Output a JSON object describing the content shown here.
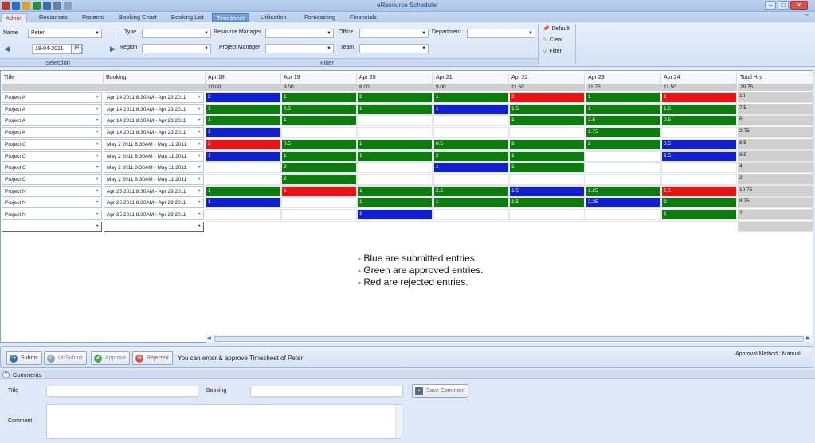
{
  "app": {
    "title": "eResource Scheduler"
  },
  "tabs": [
    {
      "label": "Admin",
      "active": true
    },
    {
      "label": "Resources"
    },
    {
      "label": "Projects"
    },
    {
      "label": "Booking Chart"
    },
    {
      "label": "Booking List"
    },
    {
      "label": "Timesheet",
      "active": true
    },
    {
      "label": "Utilisation"
    },
    {
      "label": "Forecasting"
    },
    {
      "label": "Financials"
    }
  ],
  "selection": {
    "name_label": "Name",
    "name_value": "Peter",
    "date_value": "18-04-2011",
    "calendar_label": "15",
    "group_caption": "Selection"
  },
  "filter": {
    "type_label": "Type",
    "region_label": "Region",
    "resource_manager_label": "Resource Manager",
    "project_manager_label": "Project Manager",
    "office_label": "Office",
    "team_label": "Team",
    "department_label": "Department",
    "group_caption": "Filter"
  },
  "filter_actions": {
    "default": "Default",
    "clear": "Clear",
    "filter": "Filter"
  },
  "grid": {
    "col_title": "Title",
    "col_booking": "Booking",
    "col_total": "Total Hrs",
    "days": [
      {
        "label": "Apr 18",
        "hours": "10.00"
      },
      {
        "label": "Apr 19",
        "hours": "9.00"
      },
      {
        "label": "Apr 20",
        "hours": "8.00"
      },
      {
        "label": "Apr 21",
        "hours": "9.00"
      },
      {
        "label": "Apr 22",
        "hours": "11.50"
      },
      {
        "label": "Apr 23",
        "hours": "11.75"
      },
      {
        "label": "Apr 24",
        "hours": "11.50"
      }
    ],
    "total_hours": "70.75",
    "rows": [
      {
        "title": "Project A",
        "booking": "Apr 14 2011  8:30AM - Apr 23 2011",
        "cells": [
          [
            "2",
            "b"
          ],
          [
            "1",
            "g"
          ],
          [
            "2",
            "g"
          ],
          [
            "1",
            "g"
          ],
          [
            "2",
            "r"
          ],
          [
            "1",
            "g"
          ],
          [
            "1",
            "r"
          ]
        ],
        "total": "10"
      },
      {
        "title": "Project A",
        "booking": "Apr 14 2011  8:30AM - Apr 23 2011",
        "cells": [
          [
            "1",
            "g"
          ],
          [
            "0.5",
            "g"
          ],
          [
            "1",
            "g"
          ],
          [
            "1",
            "b"
          ],
          [
            "1.5",
            "g"
          ],
          [
            "1",
            "g"
          ],
          [
            "1.5",
            "g"
          ]
        ],
        "total": "7.5"
      },
      {
        "title": "Project A",
        "booking": "Apr 14 2011  8:30AM - Apr 23 2011",
        "cells": [
          [
            "1",
            "g"
          ],
          [
            "1",
            "g"
          ],
          [
            "",
            ""
          ],
          [
            "",
            ""
          ],
          [
            "1",
            "g"
          ],
          [
            "2.5",
            "g"
          ],
          [
            "0.5",
            "g"
          ]
        ],
        "total": "6"
      },
      {
        "title": "Project A",
        "booking": "Apr 14 2011  8:30AM - Apr 23 2011",
        "cells": [
          [
            "1",
            "b"
          ],
          [
            "",
            ""
          ],
          [
            "",
            ""
          ],
          [
            "",
            ""
          ],
          [
            "",
            ""
          ],
          [
            "1.75",
            "g"
          ],
          [
            "",
            ""
          ]
        ],
        "total": "2.75"
      },
      {
        "title": "Project C",
        "booking": "May  2 2011  8:30AM - May 11 2011",
        "cells": [
          [
            "2",
            "r"
          ],
          [
            "0.5",
            "g"
          ],
          [
            "1",
            "g"
          ],
          [
            "0.5",
            "g"
          ],
          [
            "2",
            "g"
          ],
          [
            "2",
            "g"
          ],
          [
            "0.5",
            "b"
          ]
        ],
        "total": "8.5"
      },
      {
        "title": "Project C",
        "booking": "May  2 2011  8:30AM - May 11 2011",
        "cells": [
          [
            "1",
            "b"
          ],
          [
            "1",
            "g"
          ],
          [
            "1",
            "g"
          ],
          [
            "2",
            "g"
          ],
          [
            "1",
            "g"
          ],
          [
            "",
            ""
          ],
          [
            "2.5",
            "b"
          ]
        ],
        "total": "8.5"
      },
      {
        "title": "Project C",
        "booking": "May  2 2011  8:30AM - May 11 2011",
        "cells": [
          [
            "",
            ""
          ],
          [
            "2",
            "g"
          ],
          [
            "",
            ""
          ],
          [
            "1",
            "b"
          ],
          [
            "1",
            "g"
          ],
          [
            "",
            ""
          ],
          [
            "",
            ""
          ]
        ],
        "total": "4"
      },
      {
        "title": "Project C",
        "booking": "May  2 2011  8:30AM - May 11 2011",
        "cells": [
          [
            "",
            ""
          ],
          [
            "2",
            "g"
          ],
          [
            "",
            ""
          ],
          [
            "",
            ""
          ],
          [
            "",
            ""
          ],
          [
            "",
            ""
          ],
          [
            "",
            ""
          ]
        ],
        "total": "2"
      },
      {
        "title": "Project N",
        "booking": "Apr 25 2011  8:30AM - Apr 29 2011",
        "cells": [
          [
            "1",
            "g"
          ],
          [
            "1",
            "r"
          ],
          [
            "1",
            "g"
          ],
          [
            "2.5",
            "g"
          ],
          [
            "1.5",
            "b"
          ],
          [
            "1.25",
            "g"
          ],
          [
            "2.5",
            "r"
          ]
        ],
        "total": "10.75"
      },
      {
        "title": "Project N",
        "booking": "Apr 25 2011  8:30AM - Apr 29 2011",
        "cells": [
          [
            "1",
            "b"
          ],
          [
            "",
            ""
          ],
          [
            "1",
            "g"
          ],
          [
            "1",
            "g"
          ],
          [
            "1.5",
            "g"
          ],
          [
            "2.25",
            "b"
          ],
          [
            "2",
            "g"
          ]
        ],
        "total": "8.75"
      },
      {
        "title": "Project N",
        "booking": "Apr 25 2011  8:30AM - Apr 29 2011",
        "cells": [
          [
            "",
            ""
          ],
          [
            "",
            ""
          ],
          [
            "1",
            "b"
          ],
          [
            "",
            ""
          ],
          [
            "",
            ""
          ],
          [
            "",
            ""
          ],
          [
            "1",
            "g"
          ]
        ],
        "total": "2"
      }
    ]
  },
  "legend": [
    "- Blue are submitted entries.",
    "- Green are approved entries.",
    "- Red are rejected entries."
  ],
  "colors": {
    "b": "#0f1fd6",
    "g": "#0b7d0b",
    "r": "#f01010"
  },
  "actions": {
    "submit": "Submit",
    "unsubmit": "UnSubmit",
    "approve": "Approve",
    "rejected": "Rejected",
    "message": "You can enter & approve Timesheet of Peter",
    "approval_method": "Approval Method : Manual"
  },
  "comments": {
    "header": "Comments",
    "title_label": "Title",
    "booking_label": "Booking",
    "save_label": "Save Comment",
    "comment_label": "Comment"
  }
}
